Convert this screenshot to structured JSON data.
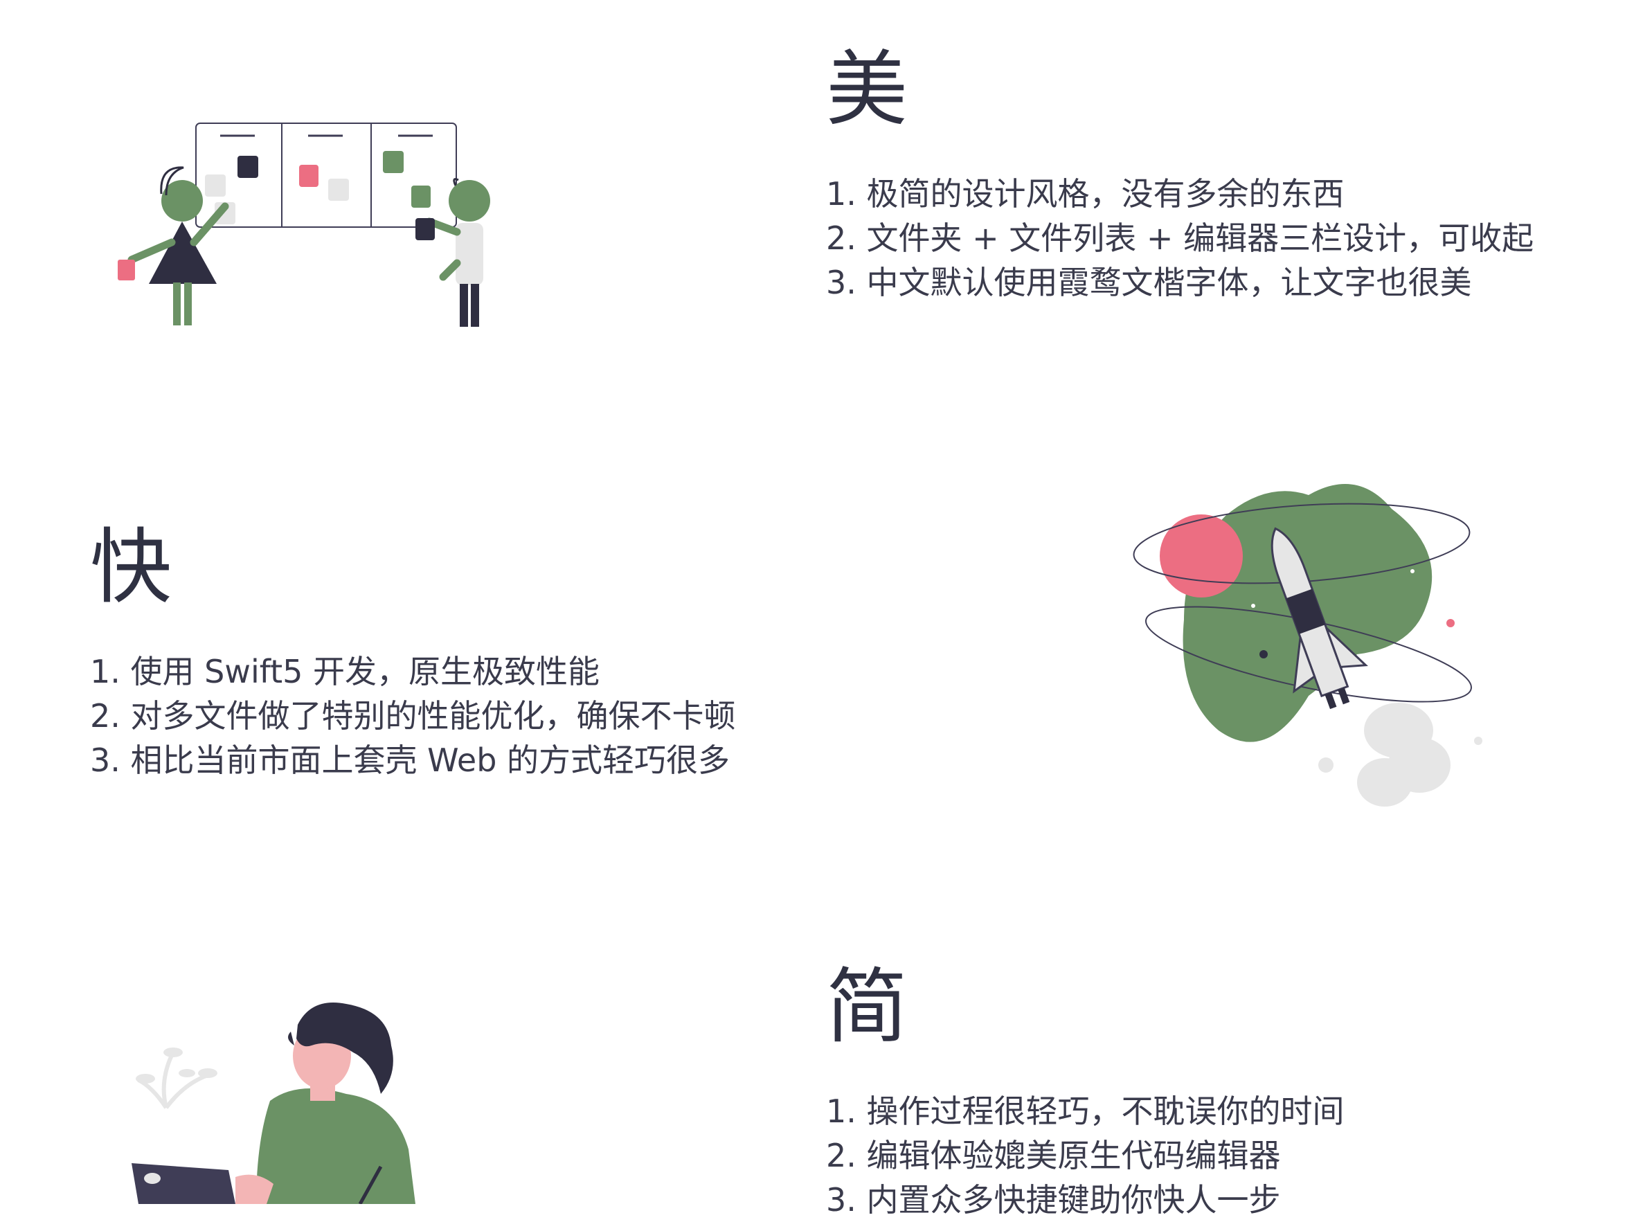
{
  "sections": [
    {
      "heading": "美",
      "points": [
        "1. 极简的设计风格，没有多余的东西",
        "2. 文件夹 + 文件列表 + 编辑器三栏设计，可收起",
        "3. 中文默认使用霞鹜文楷字体，让文字也很美"
      ],
      "illustration": "team-board-illustration"
    },
    {
      "heading": "快",
      "points": [
        "1. 使用 Swift5 开发，原生极致性能",
        "2. 对多文件做了特别的性能优化，确保不卡顿",
        "3. 相比当前市面上套壳 Web 的方式轻巧很多"
      ],
      "illustration": "rocket-illustration"
    },
    {
      "heading": "简",
      "points": [
        "1. 操作过程很轻巧，不耽误你的时间",
        "2. 编辑体验媲美原生代码编辑器",
        "3. 内置众多快捷键助你快人一步"
      ],
      "illustration": "person-laptop-illustration"
    }
  ],
  "colors": {
    "text": "#3a3b4c",
    "heading": "#2f3142",
    "green": "#6b9265",
    "pink": "#ec6e82",
    "dark": "#2f2e41",
    "grey": "#e6e6e6"
  }
}
